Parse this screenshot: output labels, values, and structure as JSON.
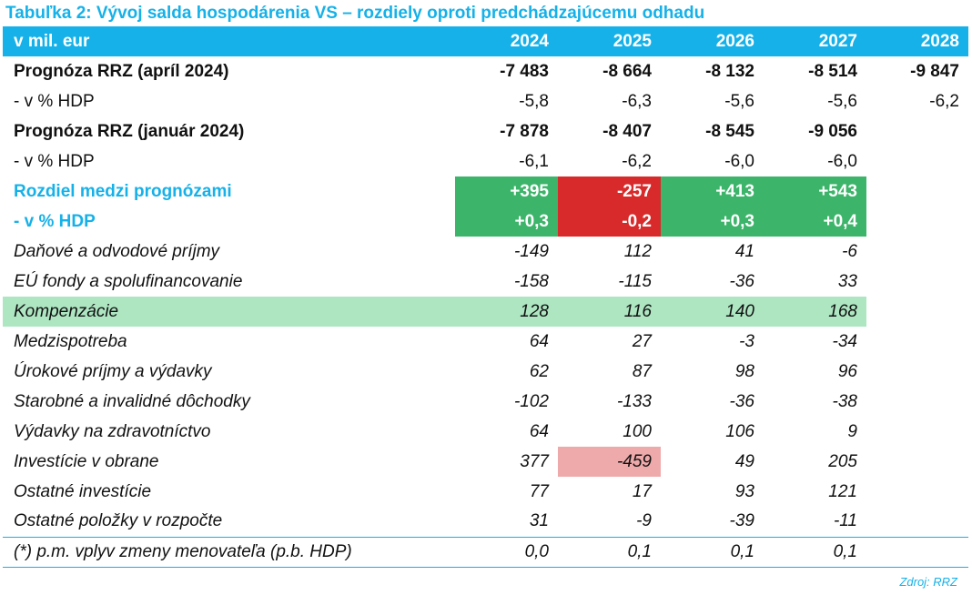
{
  "title": "Tabuľka 2: Vývoj salda hospodárenia VS – rozdiely oproti predchádzajúcemu odhadu",
  "header": {
    "unit_label": "v mil. eur",
    "years": [
      "2024",
      "2025",
      "2026",
      "2027",
      "2028"
    ]
  },
  "rows": [
    {
      "label": "Prognóza RRZ  (apríl 2024)",
      "values": [
        "-7 483",
        "-8 664",
        "-8 132",
        "-8 514",
        "-9 847"
      ]
    },
    {
      "label": "- v % HDP",
      "values": [
        "-5,8",
        "-6,3",
        "-5,6",
        "-5,6",
        "-6,2"
      ]
    },
    {
      "label": "Prognóza RRZ (január 2024)",
      "values": [
        "-7 878",
        "-8 407",
        "-8 545",
        "-9 056",
        ""
      ]
    },
    {
      "label": "- v % HDP",
      "values": [
        "-6,1",
        "-6,2",
        "-6,0",
        "-6,0",
        ""
      ]
    },
    {
      "label": "Rozdiel medzi prognózami",
      "values": [
        "+395",
        "-257",
        "+413",
        "+543",
        ""
      ]
    },
    {
      "label": "- v % HDP",
      "values": [
        "+0,3",
        "-0,2",
        "+0,3",
        "+0,4",
        ""
      ]
    },
    {
      "label": "Daňové a odvodové príjmy",
      "values": [
        "-149",
        "112",
        "41",
        "-6",
        ""
      ]
    },
    {
      "label": "EÚ fondy a spolufinancovanie",
      "values": [
        "-158",
        "-115",
        "-36",
        "33",
        ""
      ]
    },
    {
      "label": "Kompenzácie",
      "values": [
        "128",
        "116",
        "140",
        "168",
        ""
      ]
    },
    {
      "label": "Medzispotreba",
      "values": [
        "64",
        "27",
        "-3",
        "-34",
        ""
      ]
    },
    {
      "label": "Úrokové príjmy a výdavky",
      "values": [
        "62",
        "87",
        "98",
        "96",
        ""
      ]
    },
    {
      "label": "Starobné a invalidné dôchodky",
      "values": [
        "-102",
        "-133",
        "-36",
        "-38",
        ""
      ]
    },
    {
      "label": "Výdavky na zdravotníctvo",
      "values": [
        "64",
        "100",
        "106",
        "9",
        ""
      ]
    },
    {
      "label": "Investície v obrane",
      "values": [
        "377",
        "-459",
        "49",
        "205",
        ""
      ]
    },
    {
      "label": "Ostatné investície",
      "values": [
        "77",
        "17",
        "93",
        "121",
        ""
      ]
    },
    {
      "label": "Ostatné položky v rozpočte",
      "values": [
        "31",
        "-9",
        "-39",
        "-11",
        ""
      ]
    },
    {
      "label": "(*) p.m. vplyv zmeny menovateľa (p.b. HDP)",
      "values": [
        "0,0",
        "0,1",
        "0,1",
        "0,1",
        ""
      ]
    }
  ],
  "source": "Zdroj: RRZ",
  "colors": {
    "accent": "#16b1e8",
    "positive_fill": "#3cb46a",
    "negative_fill": "#d82a2a",
    "highlight_row": "#aee6c2",
    "highlight_cell": "#eeaaab"
  }
}
